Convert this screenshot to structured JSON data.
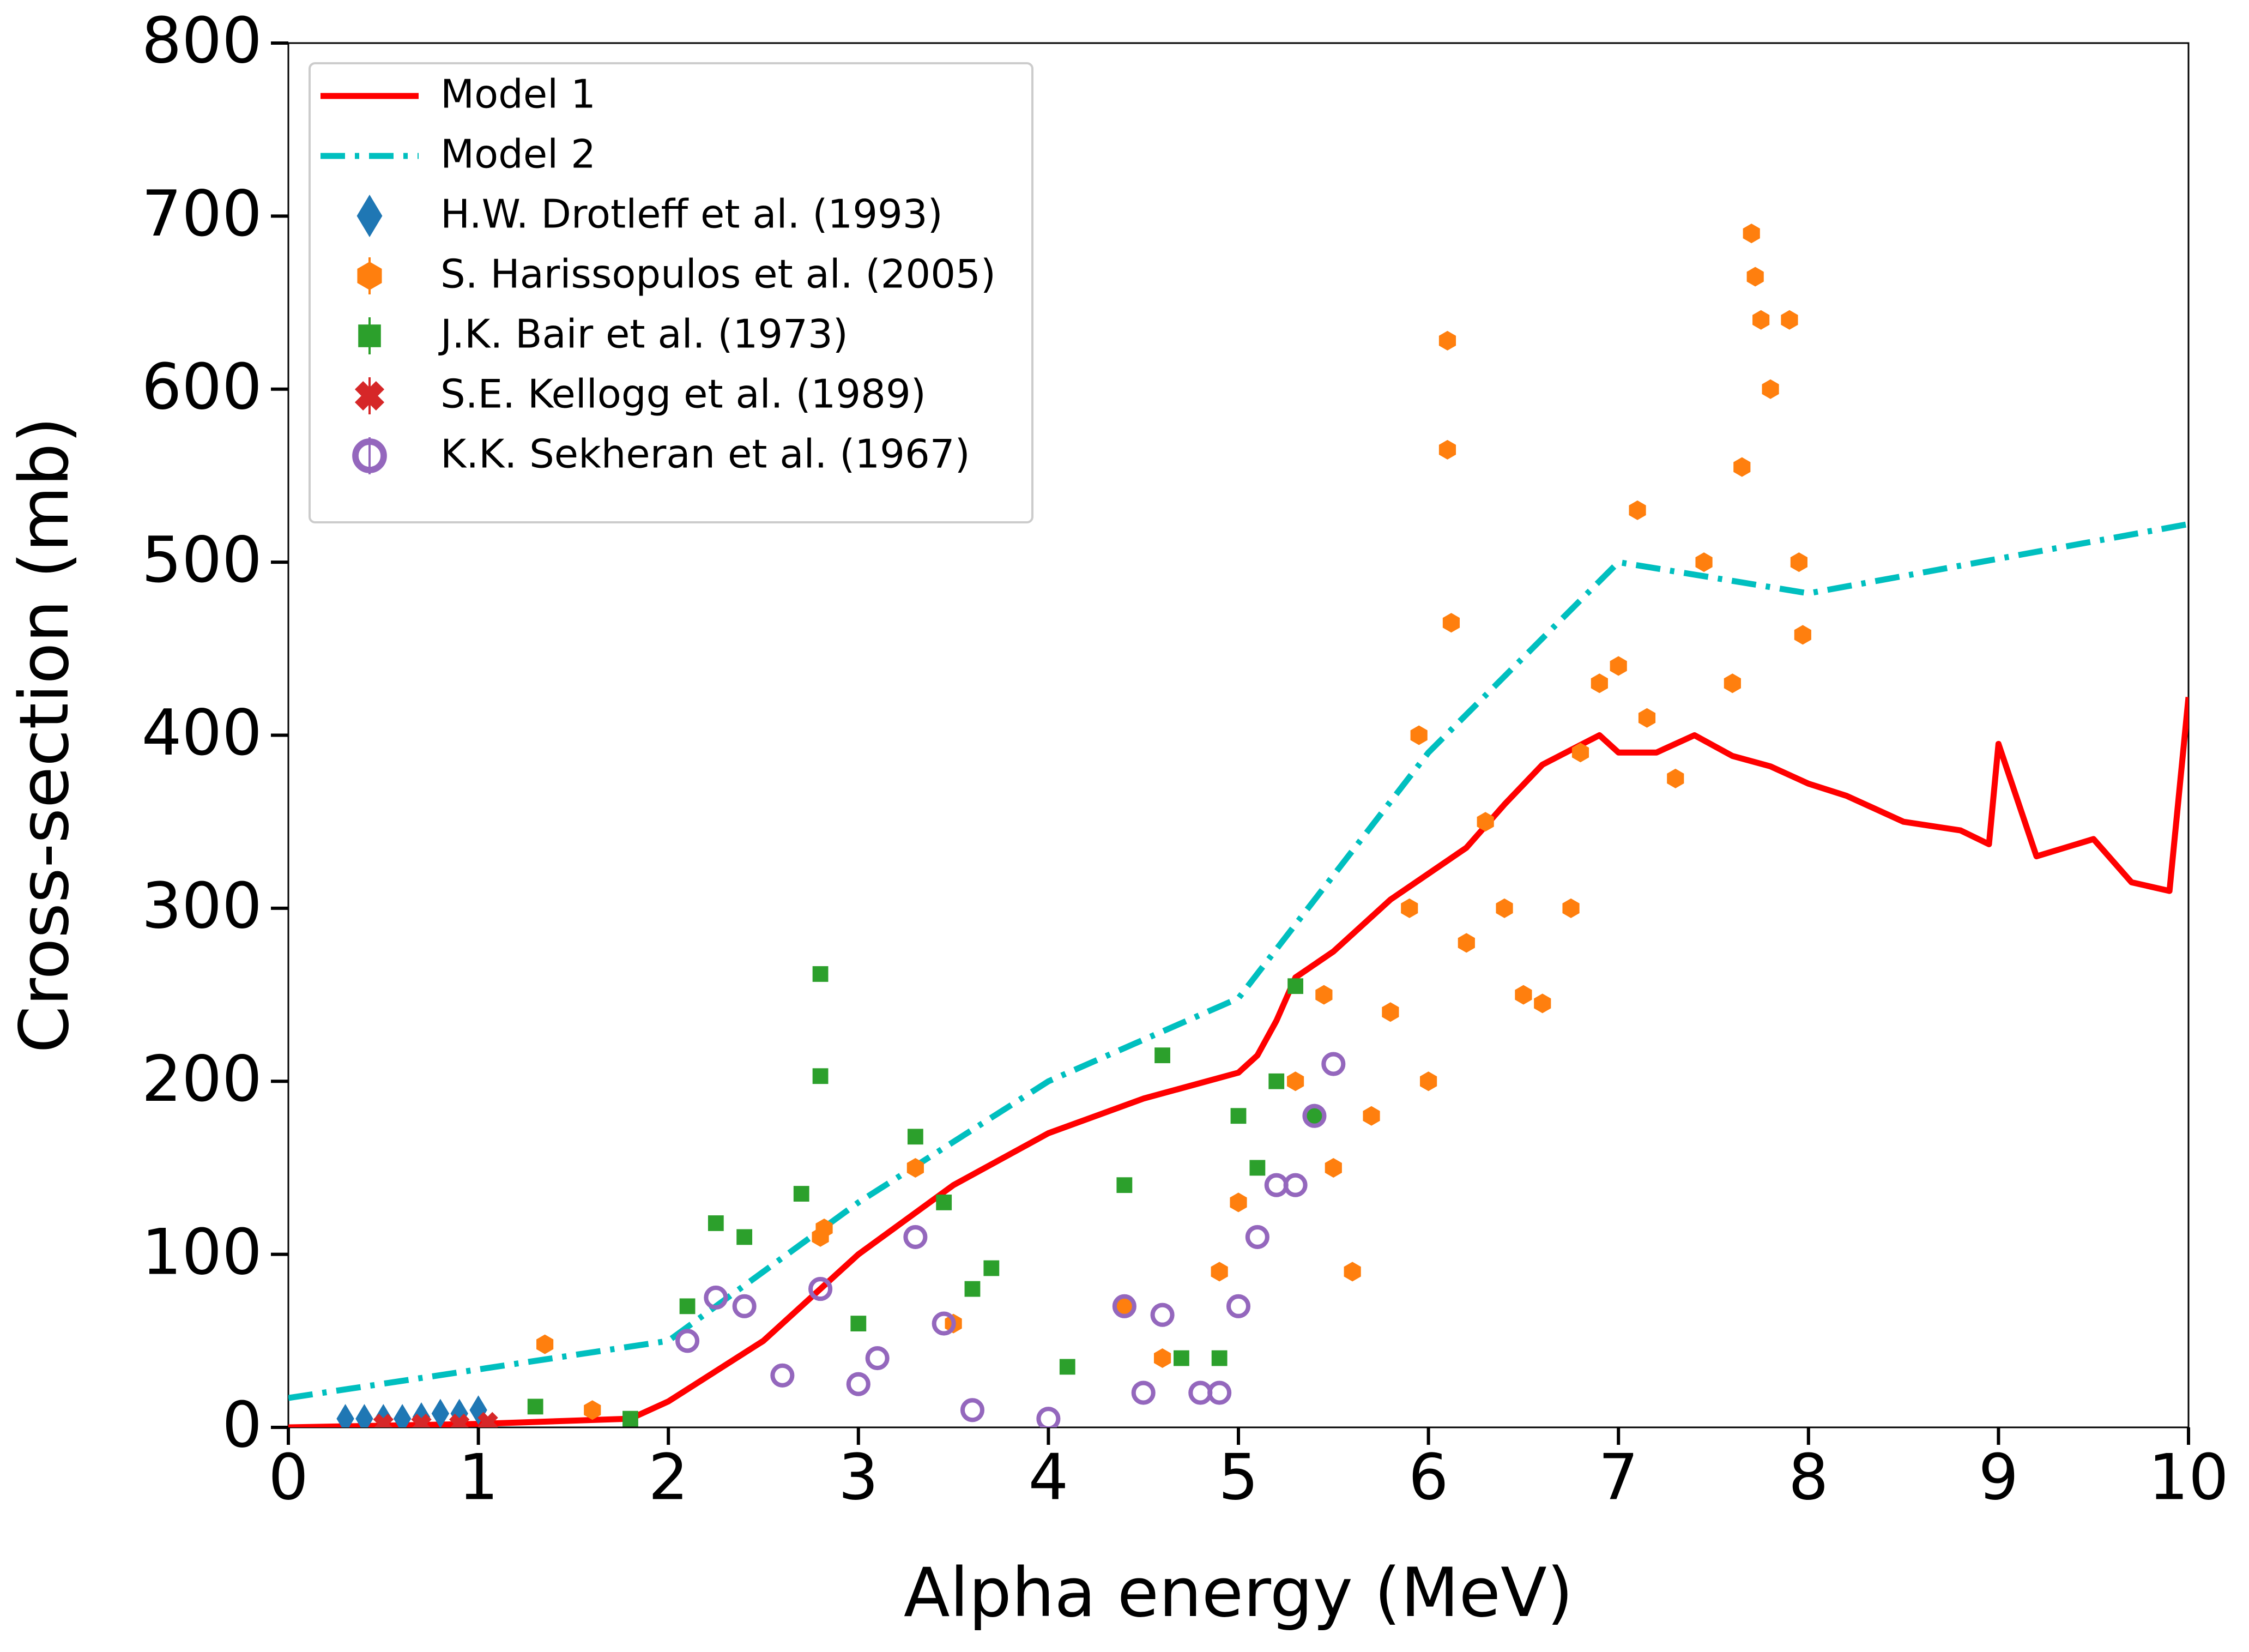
{
  "chart_data": {
    "type": "line",
    "xlabel": "Alpha energy (MeV)",
    "ylabel": "Cross-section (mb)",
    "xlim": [
      0,
      10
    ],
    "ylim": [
      0,
      800
    ],
    "xticks": [
      0,
      1,
      2,
      3,
      4,
      5,
      6,
      7,
      8,
      9,
      10
    ],
    "yticks": [
      0,
      100,
      200,
      300,
      400,
      500,
      600,
      700,
      800
    ],
    "grid": false,
    "legend": "upper left",
    "series": [
      {
        "name": "Model 1",
        "color": "#ff0000",
        "style": "solid",
        "marker": "none",
        "x": [
          0,
          1,
          1.8,
          2,
          2.5,
          3,
          3.5,
          4,
          4.5,
          5,
          5.1,
          5.2,
          5.3,
          5.5,
          5.8,
          6,
          6.2,
          6.4,
          6.6,
          6.9,
          7,
          7.2,
          7.4,
          7.6,
          7.8,
          8,
          8.2,
          8.5,
          8.8,
          8.95,
          9,
          9.2,
          9.5,
          9.7,
          9.9,
          10
        ],
        "values": [
          0,
          2,
          5,
          15,
          50,
          100,
          140,
          170,
          190,
          205,
          215,
          235,
          260,
          275,
          305,
          320,
          335,
          360,
          383,
          400,
          390,
          390,
          400,
          388,
          382,
          372,
          365,
          350,
          345,
          337,
          395,
          330,
          340,
          315,
          310,
          422
        ]
      },
      {
        "name": "Model 2",
        "color": "#00bfbf",
        "style": "dashdot",
        "marker": "none",
        "x": [
          0,
          2,
          3,
          4,
          5,
          6,
          7,
          8,
          10
        ],
        "values": [
          17,
          50,
          130,
          200,
          248,
          390,
          500,
          482,
          522
        ]
      },
      {
        "name": "H.W. Drotleff et al. (1993)",
        "color": "#1f77b4",
        "style": "none",
        "marker": "diamond",
        "x": [
          0.3,
          0.4,
          0.5,
          0.6,
          0.7,
          0.8,
          0.9,
          1.0
        ],
        "values": [
          5,
          5,
          5,
          5,
          6,
          8,
          8,
          10
        ]
      },
      {
        "name": "S. Harissopulos et al. (2005)",
        "color": "#ff7f0e",
        "style": "none",
        "marker": "hexagon",
        "x": [
          1.35,
          1.6,
          2.8,
          2.82,
          3.3,
          3.5,
          4.4,
          4.6,
          4.9,
          5.0,
          5.3,
          5.45,
          5.5,
          5.6,
          5.7,
          5.8,
          5.9,
          5.95,
          6.0,
          6.1,
          6.1,
          6.12,
          6.2,
          6.3,
          6.4,
          6.5,
          6.6,
          6.75,
          6.8,
          6.9,
          7.0,
          7.1,
          7.15,
          7.3,
          7.45,
          7.6,
          7.65,
          7.7,
          7.72,
          7.75,
          7.8,
          7.9,
          7.95,
          7.97
        ],
        "values": [
          48,
          10,
          110,
          115,
          150,
          60,
          70,
          40,
          90,
          130,
          200,
          250,
          150,
          90,
          180,
          240,
          300,
          400,
          200,
          628,
          565,
          465,
          280,
          350,
          300,
          250,
          245,
          300,
          390,
          430,
          440,
          530,
          410,
          375,
          500,
          430,
          555,
          690,
          665,
          640,
          600,
          640,
          500,
          458
        ]
      },
      {
        "name": "J.K. Bair et al. (1973)",
        "color": "#2ca02c",
        "style": "none",
        "marker": "square",
        "x": [
          1.3,
          1.8,
          2.1,
          2.25,
          2.4,
          2.7,
          2.8,
          2.8,
          3.0,
          3.3,
          3.45,
          3.6,
          3.7,
          4.1,
          4.4,
          4.6,
          4.7,
          4.9,
          5.0,
          5.1,
          5.2,
          5.3,
          5.4
        ],
        "values": [
          12,
          5,
          70,
          118,
          110,
          135,
          262,
          203,
          60,
          168,
          130,
          80,
          92,
          35,
          140,
          215,
          40,
          40,
          180,
          150,
          200,
          255,
          180
        ]
      },
      {
        "name": "S.E. Kellogg et al. (1989)",
        "color": "#d62728",
        "style": "none",
        "marker": "cross",
        "x": [
          0.5,
          0.7,
          0.9,
          1.05
        ],
        "values": [
          2,
          2,
          2,
          3
        ]
      },
      {
        "name": "K.K. Sekheran et al. (1967)",
        "color": "#9467bd",
        "style": "none",
        "marker": "circle",
        "x": [
          2.1,
          2.25,
          2.4,
          2.6,
          2.8,
          3.0,
          3.1,
          3.3,
          3.45,
          3.6,
          4.0,
          4.4,
          4.5,
          4.6,
          4.8,
          4.9,
          5.0,
          5.1,
          5.2,
          5.3,
          5.4,
          5.5
        ],
        "values": [
          50,
          75,
          70,
          30,
          80,
          25,
          40,
          110,
          60,
          10,
          5,
          70,
          20,
          65,
          20,
          20,
          70,
          110,
          140,
          140,
          180,
          210
        ]
      }
    ]
  }
}
